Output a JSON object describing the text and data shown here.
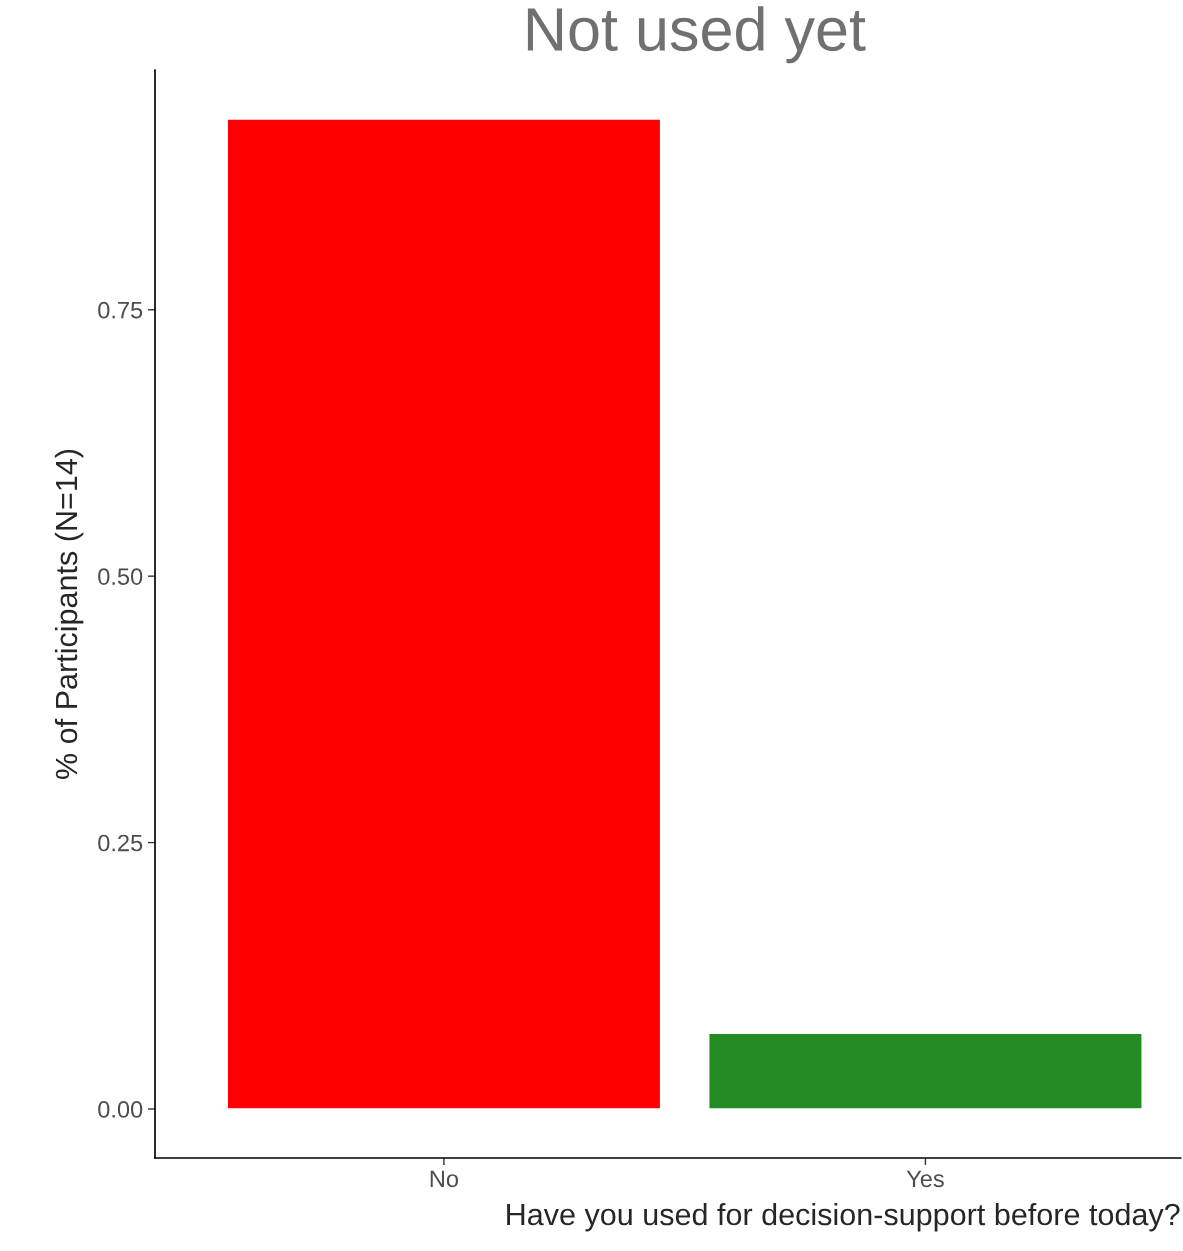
{
  "chart_data": {
    "type": "bar",
    "title": "Not used yet",
    "xlabel": "Have you used for decision-support before today?",
    "ylabel": "% of Participants (N=14)",
    "categories": [
      "No",
      "Yes"
    ],
    "values": [
      0.929,
      0.071
    ],
    "colors": [
      "#ff0000",
      "#228b22"
    ],
    "ylim": [
      -0.046,
      0.975
    ],
    "yticks": [
      {
        "value": 0,
        "label": "0.00"
      },
      {
        "value": 0.25,
        "label": "0.25"
      },
      {
        "value": 0.5,
        "label": "0.50"
      },
      {
        "value": 0.75,
        "label": "0.75"
      }
    ],
    "grid": false,
    "legend": false
  }
}
